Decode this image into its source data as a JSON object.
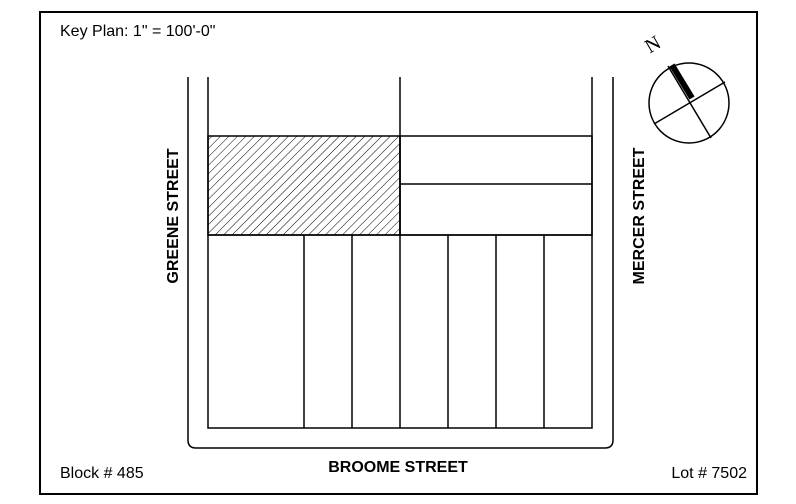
{
  "title": "Key Plan: 1\" = 100'-0\"",
  "compass": {
    "label": "N"
  },
  "streets": {
    "west": "GREENE STREET",
    "east": "MERCER STREET",
    "south": "BROOME STREET"
  },
  "block": "Block # 485",
  "lot": "Lot # 7502"
}
